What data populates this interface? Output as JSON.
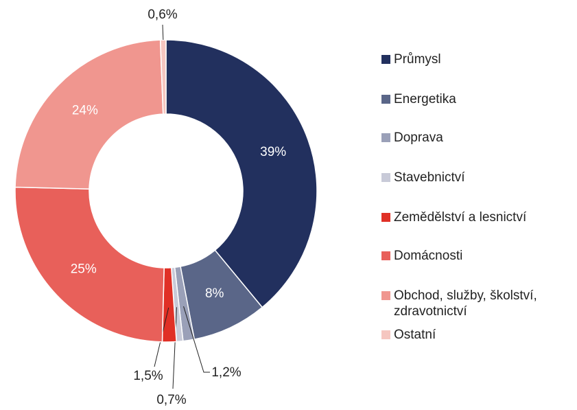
{
  "chart_data": {
    "type": "donut",
    "categories": [
      "Průmysl",
      "Energetika",
      "Doprava",
      "Stavebnictví",
      "Zemědělství a lesnictví",
      "Domácnosti",
      "Obchod, služby, školství, zdravotnictví",
      "Ostatní"
    ],
    "values": [
      39,
      8,
      1.2,
      0.7,
      1.5,
      25,
      24,
      0.6
    ],
    "value_labels": [
      "39%",
      "8%",
      "1,2%",
      "0,7%",
      "1,5%",
      "25%",
      "24%",
      "0,6%"
    ],
    "colors": [
      "#22305e",
      "#5a6688",
      "#9aa0b8",
      "#c8cad8",
      "#e03026",
      "#e8605a",
      "#f0968f",
      "#f5c6c0"
    ],
    "legend": "right"
  }
}
